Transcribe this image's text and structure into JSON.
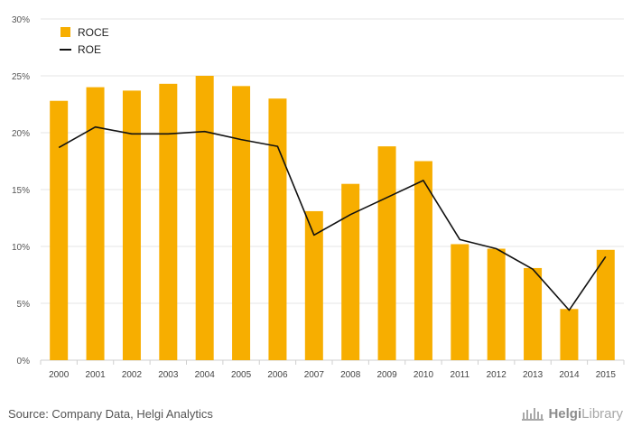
{
  "chart_data": {
    "type": "bar",
    "categories": [
      "2000",
      "2001",
      "2002",
      "2003",
      "2004",
      "2005",
      "2006",
      "2007",
      "2008",
      "2009",
      "2010",
      "2011",
      "2012",
      "2013",
      "2014",
      "2015"
    ],
    "series": [
      {
        "name": "ROCE",
        "kind": "bar",
        "color": "#F7AE00",
        "values": [
          22.8,
          24.0,
          23.7,
          24.3,
          25.0,
          24.1,
          23.0,
          13.1,
          15.5,
          18.8,
          17.5,
          10.2,
          9.8,
          8.1,
          4.5,
          9.7
        ]
      },
      {
        "name": "ROE",
        "kind": "line",
        "color": "#111111",
        "values": [
          18.7,
          20.5,
          19.9,
          19.9,
          20.1,
          19.4,
          18.8,
          11.0,
          12.8,
          14.3,
          15.8,
          10.6,
          9.8,
          8.0,
          4.4,
          9.1
        ]
      }
    ],
    "y_ticks": [
      "0%",
      "5%",
      "10%",
      "15%",
      "20%",
      "25%",
      "30%"
    ],
    "ylim": [
      0,
      30
    ],
    "y_unit": "%",
    "grid": true,
    "legend_position": "top-left",
    "title": "",
    "xlabel": "",
    "ylabel": ""
  },
  "footer": {
    "source": "Source: Company Data, Helgi Analytics",
    "brand_strong": "Helgi",
    "brand_light": "Library"
  }
}
